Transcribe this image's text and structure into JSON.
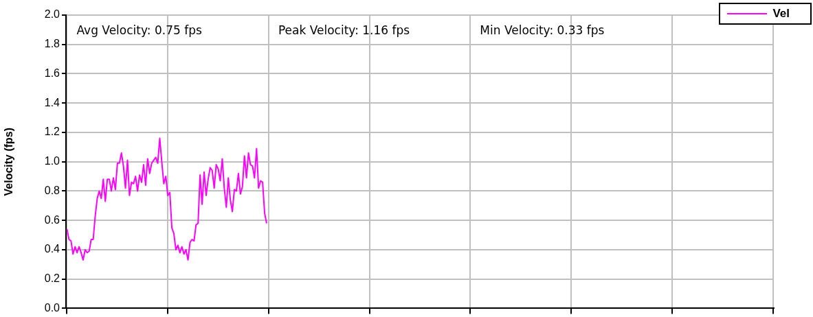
{
  "chart_data": {
    "type": "line",
    "ylabel": "Velocity (fps)",
    "annotations": [
      "Avg Velocity: 0.75 fps",
      "Peak Velocity: 1.16 fps",
      "Min Velocity: 0.33 fps"
    ],
    "categories": [
      null,
      null,
      null,
      null,
      null,
      null,
      null,
      null,
      null,
      null,
      null,
      null,
      null,
      null,
      null,
      null,
      null,
      null,
      null,
      null,
      null,
      null,
      null,
      null,
      null,
      null,
      null,
      null,
      null,
      null,
      null,
      null,
      null,
      null,
      null,
      null,
      null,
      null,
      null,
      null,
      null,
      null,
      null,
      null,
      null,
      null,
      null,
      null,
      null,
      null,
      null,
      null,
      null,
      null,
      null,
      null,
      null,
      null,
      null,
      null,
      null,
      null,
      null,
      null,
      null,
      null,
      null,
      null,
      null,
      null,
      null,
      null,
      null,
      null,
      null,
      null,
      null,
      null,
      null,
      null,
      null,
      null,
      null,
      null,
      null,
      null,
      null,
      null,
      null,
      null,
      null,
      null,
      null,
      null,
      null,
      null,
      null,
      null,
      null,
      null,
      null,
      null,
      null,
      null,
      null,
      null,
      null,
      null,
      null,
      null,
      null,
      null,
      null,
      null,
      null,
      null,
      null,
      null,
      null,
      null,
      null,
      null,
      null,
      null,
      null,
      null,
      null,
      null,
      null,
      null,
      null,
      null,
      null,
      null,
      null,
      null,
      null,
      null,
      null,
      null,
      null,
      null,
      null,
      null,
      null,
      null,
      null,
      null,
      null,
      null,
      null,
      null,
      null,
      null,
      null,
      null,
      null,
      null,
      null,
      null,
      null,
      null,
      null,
      null,
      null,
      null,
      null,
      null,
      null,
      null,
      null,
      null,
      null,
      null,
      null,
      null,
      null,
      null,
      null,
      null,
      null,
      null,
      null,
      null,
      null,
      null,
      null,
      null,
      null,
      null,
      null,
      null,
      null,
      null,
      null,
      null,
      null,
      null,
      null,
      null,
      null,
      null,
      null,
      null,
      null,
      null,
      null,
      null,
      null,
      null,
      null,
      null,
      null,
      null,
      null,
      null,
      null,
      null,
      null,
      null,
      null,
      null,
      null,
      null,
      null,
      null,
      null,
      null,
      null,
      null,
      null,
      null,
      null,
      null,
      null,
      null,
      null,
      null,
      null,
      null,
      null,
      null,
      null,
      null,
      null,
      null,
      null,
      null,
      null,
      null,
      null,
      null,
      null,
      null,
      null,
      null,
      null,
      null,
      null,
      null,
      null,
      null,
      null,
      null,
      null,
      null,
      null,
      null,
      null,
      null,
      null,
      null,
      null,
      null,
      null,
      null,
      null,
      null,
      null,
      null,
      null,
      null,
      null,
      null,
      null,
      null,
      null,
      null,
      null,
      null,
      null,
      null,
      null,
      null,
      null,
      null,
      null,
      null,
      null,
      null,
      null,
      null,
      null,
      null,
      null,
      null,
      null,
      null,
      null,
      null,
      null,
      null,
      null,
      null,
      null,
      null,
      null,
      null,
      null,
      null,
      null,
      null,
      null,
      null,
      null,
      null,
      null,
      null,
      null,
      null,
      null,
      null,
      null,
      null,
      null,
      null,
      null,
      null,
      null,
      null,
      null,
      null,
      null,
      null,
      null,
      null,
      null,
      null,
      null,
      null,
      null
    ],
    "ylim": [
      0,
      2
    ],
    "yticks": [
      {
        "value": 0,
        "label": "0.0"
      },
      {
        "value": 0.2,
        "label": "0.2"
      },
      {
        "value": 0.4,
        "label": "0.4"
      },
      {
        "value": 0.6,
        "label": "0.6"
      },
      {
        "value": 0.8,
        "label": "0.8"
      },
      {
        "value": 1,
        "label": "1.0"
      },
      {
        "value": 1.2,
        "label": "1.2"
      },
      {
        "value": 1.4,
        "label": "1.4"
      },
      {
        "value": 1.6,
        "label": "1.6"
      },
      {
        "value": 1.8,
        "label": "1.8"
      },
      {
        "value": 2,
        "label": "2.0"
      }
    ],
    "tick_labels": "y",
    "grid": true,
    "legend": "top right",
    "marker": "none",
    "series": [
      {
        "name": "Vel",
        "color": "#ff00ff",
        "values": [
          0.54,
          0.47,
          0.46,
          0.37,
          0.42,
          0.38,
          0.42,
          0.38,
          0.33,
          0.4,
          0.38,
          0.39,
          0.47,
          0.47,
          0.63,
          0.75,
          0.8,
          0.75,
          0.88,
          0.73,
          0.88,
          0.88,
          0.8,
          0.89,
          0.81,
          0.99,
          0.99,
          1.06,
          0.97,
          0.82,
          1.01,
          0.77,
          0.86,
          0.85,
          0.9,
          0.8,
          0.91,
          0.86,
          0.98,
          0.84,
          1.02,
          0.92,
          0.99,
          1.01,
          1.03,
          0.99,
          1.16,
          1,
          0.85,
          0.9,
          0.77,
          0.79,
          0.55,
          0.51,
          0.4,
          0.43,
          0.38,
          0.42,
          0.37,
          0.4,
          0.33,
          0.45,
          0.47,
          0.46,
          0.57,
          0.58,
          0.91,
          0.71,
          0.93,
          0.77,
          0.88,
          0.96,
          0.94,
          0.82,
          0.98,
          0.95,
          0.87,
          1.02,
          0.82,
          0.69,
          0.89,
          0.74,
          0.66,
          0.81,
          0.8,
          0.92,
          0.78,
          0.83,
          1.04,
          0.89,
          1.06,
          0.98,
          0.97,
          0.89,
          1.09,
          0.82,
          0.87,
          0.86,
          0.65,
          0.58,
          null,
          null,
          null,
          null,
          null,
          null,
          null,
          null,
          null,
          null,
          null,
          null,
          null,
          null,
          null,
          null,
          null,
          null,
          null,
          null,
          null,
          null,
          null,
          null,
          null,
          null,
          null,
          null,
          null,
          null,
          null,
          null,
          null,
          null,
          null,
          null,
          null,
          null,
          null,
          null,
          null,
          null,
          null,
          null,
          null,
          null,
          null,
          null,
          null,
          null,
          null,
          null,
          null,
          null,
          null,
          null,
          null,
          null,
          null,
          null,
          null,
          null,
          null,
          null,
          null,
          null,
          null,
          null,
          null,
          null,
          null,
          null,
          null,
          null,
          null,
          null,
          null,
          null,
          null,
          null,
          null,
          null,
          null,
          null,
          null,
          null,
          null,
          null,
          null,
          null,
          null,
          null,
          null,
          null,
          null,
          null,
          null,
          null,
          null,
          null,
          null,
          null,
          null,
          null,
          null,
          null,
          null,
          null,
          null,
          null,
          null,
          null,
          null,
          null,
          null,
          null,
          null,
          null,
          null,
          null,
          null,
          null,
          null,
          null,
          null,
          null,
          null,
          null,
          null,
          null,
          null,
          null,
          null,
          null,
          null,
          null,
          null,
          null,
          null,
          null,
          null,
          null,
          null,
          null,
          null,
          null,
          null,
          null,
          null,
          null,
          null,
          null,
          null,
          null,
          null,
          null,
          null,
          null,
          null,
          null,
          null,
          null,
          null,
          null,
          null,
          null,
          null,
          null,
          null,
          null,
          null,
          null,
          null,
          null,
          null,
          null,
          null,
          null,
          null,
          null,
          null,
          null,
          null,
          null,
          null,
          null,
          null,
          null,
          null,
          null,
          null,
          null,
          null,
          null,
          null,
          null,
          null,
          null,
          null,
          null,
          null,
          null,
          null,
          null,
          null,
          null,
          null,
          null,
          null,
          null,
          null,
          null,
          null,
          null,
          null,
          null,
          null,
          null,
          null,
          null,
          null,
          null,
          null,
          null,
          null,
          null,
          null,
          null,
          null,
          null,
          null,
          null,
          null,
          null,
          null,
          null,
          null,
          null,
          null,
          null,
          null,
          null,
          null,
          null,
          null,
          null,
          null,
          null,
          null,
          null,
          null
        ]
      }
    ]
  }
}
